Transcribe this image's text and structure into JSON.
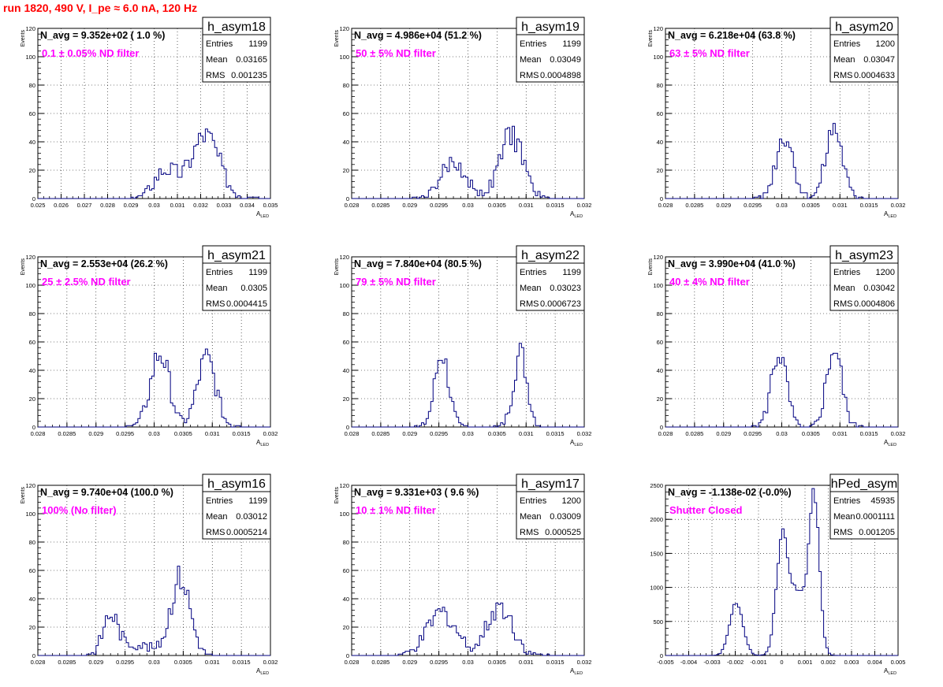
{
  "page_title": "run 1820,   490 V, I_pe ≈ 6.0 nA, 120 Hz",
  "colors": {
    "title": "#ff0000",
    "annotation": "#ff00ff",
    "histogram": "#000080",
    "grid": "#000000"
  },
  "chart_data": [
    {
      "type": "histogram",
      "name": "h_asym18",
      "stats": {
        "entries_label": "Entries",
        "entries": "1199",
        "mean_label": "Mean",
        "mean": "0.03165",
        "rms_label": "RMS",
        "rms": "0.001235"
      },
      "navg": "N_avg = 9.352e+02 ( 1.0 %)",
      "note": "0.1 ± 0.05% ND filter",
      "xlabel": "A",
      "xlabel_sub": "LED",
      "ylabel": "Events",
      "xlim": [
        0.025,
        0.035
      ],
      "ylim": [
        0,
        120
      ],
      "xticks": [
        "0.025",
        "0.026",
        "0.027",
        "0.028",
        "0.029",
        "0.03",
        "0.031",
        "0.032",
        "0.033",
        "0.034",
        "0.035"
      ],
      "yticks": [
        "0",
        "20",
        "40",
        "60",
        "80",
        "100",
        "120"
      ],
      "peaks": [
        [
          0.0305,
          0.0005,
          20,
          1
        ],
        [
          0.0322,
          0.0006,
          45,
          2
        ]
      ],
      "grid": true
    },
    {
      "type": "histogram",
      "name": "h_asym19",
      "stats": {
        "entries_label": "Entries",
        "entries": "1199",
        "mean_label": "Mean",
        "mean": "0.03049",
        "rms_label": "RMS",
        "rms": "0.0004898"
      },
      "navg": "N_avg = 4.986e+04 (51.2 %)",
      "note": "50 ± 5% ND filter",
      "xlabel": "A",
      "xlabel_sub": "LED",
      "ylabel": "Events",
      "xlim": [
        0.028,
        0.032
      ],
      "ylim": [
        0,
        120
      ],
      "xticks": [
        "0.028",
        "0.0285",
        "0.029",
        "0.0295",
        "0.03",
        "0.0305",
        "0.031",
        "0.0315",
        "0.032"
      ],
      "yticks": [
        "0",
        "20",
        "40",
        "60",
        "80",
        "100",
        "120"
      ],
      "peaks": [
        [
          0.02975,
          0.00022,
          25,
          3
        ],
        [
          0.03075,
          0.0002,
          45,
          4
        ]
      ],
      "grid": true
    },
    {
      "type": "histogram",
      "name": "h_asym20",
      "stats": {
        "entries_label": "Entries",
        "entries": "1200",
        "mean_label": "Mean",
        "mean": "0.03047",
        "rms_label": "RMS",
        "rms": "0.0004633"
      },
      "navg": "N_avg = 6.218e+04 (63.8 %)",
      "note": "63 ± 5% ND filter",
      "xlabel": "A",
      "xlabel_sub": "LED",
      "ylabel": "Events",
      "xlim": [
        0.028,
        0.032
      ],
      "ylim": [
        0,
        120
      ],
      "xticks": [
        "0.028",
        "0.0285",
        "0.029",
        "0.0295",
        "0.03",
        "0.0305",
        "0.031",
        "0.0315",
        "0.032"
      ],
      "yticks": [
        "0",
        "20",
        "40",
        "60",
        "80",
        "100",
        "120"
      ],
      "peaks": [
        [
          0.03005,
          0.00015,
          45,
          5
        ],
        [
          0.0309,
          0.00014,
          50,
          6
        ]
      ],
      "grid": true
    },
    {
      "type": "histogram",
      "name": "h_asym21",
      "stats": {
        "entries_label": "Entries",
        "entries": "1199",
        "mean_label": "Mean",
        "mean": "0.0305",
        "rms_label": "RMS",
        "rms": "0.0004415"
      },
      "navg": "N_avg = 2.553e+04 (26.2 %)",
      "note": "25 ± 2.5% ND filter",
      "xlabel": "A",
      "xlabel_sub": "LED",
      "ylabel": "Events",
      "xlim": [
        0.028,
        0.032
      ],
      "ylim": [
        0,
        120
      ],
      "xticks": [
        "0.028",
        "0.0285",
        "0.029",
        "0.0295",
        "0.03",
        "0.0305",
        "0.031",
        "0.0315",
        "0.032"
      ],
      "yticks": [
        "0",
        "20",
        "40",
        "60",
        "80",
        "100",
        "120"
      ],
      "peaks": [
        [
          0.0301,
          0.00016,
          52,
          7
        ],
        [
          0.0309,
          0.00016,
          48,
          8
        ]
      ],
      "grid": true
    },
    {
      "type": "histogram",
      "name": "h_asym22",
      "stats": {
        "entries_label": "Entries",
        "entries": "1199",
        "mean_label": "Mean",
        "mean": "0.03023",
        "rms_label": "RMS",
        "rms": "0.0006723"
      },
      "navg": "N_avg = 7.840e+04 (80.5 %)",
      "note": "79 ± 5% ND filter",
      "xlabel": "A",
      "xlabel_sub": "LED",
      "ylabel": "Events",
      "xlim": [
        0.028,
        0.032
      ],
      "ylim": [
        0,
        120
      ],
      "xticks": [
        "0.028",
        "0.0285",
        "0.029",
        "0.0295",
        "0.03",
        "0.0305",
        "0.031",
        "0.0315",
        "0.032"
      ],
      "yticks": [
        "0",
        "20",
        "40",
        "60",
        "80",
        "100",
        "120"
      ],
      "peaks": [
        [
          0.02955,
          0.00012,
          52,
          9
        ],
        [
          0.0309,
          0.00012,
          52,
          10
        ]
      ],
      "grid": true
    },
    {
      "type": "histogram",
      "name": "h_asym23",
      "stats": {
        "entries_label": "Entries",
        "entries": "1200",
        "mean_label": "Mean",
        "mean": "0.03042",
        "rms_label": "RMS",
        "rms": "0.0004806"
      },
      "navg": "N_avg = 3.990e+04 (41.0 %)",
      "note": "40 ± 4% ND filter",
      "xlabel": "A",
      "xlabel_sub": "LED",
      "ylabel": "Events",
      "xlim": [
        0.028,
        0.032
      ],
      "ylim": [
        0,
        120
      ],
      "xticks": [
        "0.028",
        "0.0285",
        "0.029",
        "0.0295",
        "0.03",
        "0.0305",
        "0.031",
        "0.0315",
        "0.032"
      ],
      "yticks": [
        "0",
        "20",
        "40",
        "60",
        "80",
        "100",
        "120"
      ],
      "peaks": [
        [
          0.02995,
          0.00013,
          52,
          11
        ],
        [
          0.0309,
          0.00013,
          55,
          12
        ]
      ],
      "grid": true
    },
    {
      "type": "histogram",
      "name": "h_asym16",
      "stats": {
        "entries_label": "Entries",
        "entries": "1199",
        "mean_label": "Mean",
        "mean": "0.03012",
        "rms_label": "RMS",
        "rms": "0.0005214"
      },
      "navg": "N_avg = 9.740e+04 (100.0 %)",
      "note": "100% (No filter)",
      "xlabel": "A",
      "xlabel_sub": "LED",
      "ylabel": "Events",
      "xlim": [
        0.028,
        0.032
      ],
      "ylim": [
        0,
        120
      ],
      "xticks": [
        "0.028",
        "0.0285",
        "0.029",
        "0.0295",
        "0.03",
        "0.0305",
        "0.031",
        "0.0315",
        "0.032"
      ],
      "yticks": [
        "0",
        "20",
        "40",
        "60",
        "80",
        "100",
        "120"
      ],
      "peaks": [
        [
          0.02925,
          0.00013,
          28,
          13
        ],
        [
          0.03045,
          0.00017,
          55,
          14
        ],
        [
          0.0297,
          0.00025,
          8,
          15
        ]
      ],
      "grid": true
    },
    {
      "type": "histogram",
      "name": "h_asym17",
      "stats": {
        "entries_label": "Entries",
        "entries": "1200",
        "mean_label": "Mean",
        "mean": "0.03009",
        "rms_label": "RMS",
        "rms": "0.000525"
      },
      "navg": "N_avg = 9.331e+03 ( 9.6 %)",
      "note": "10 ± 1% ND filter",
      "xlabel": "A",
      "xlabel_sub": "LED",
      "ylabel": "Events",
      "xlim": [
        0.028,
        0.032
      ],
      "ylim": [
        0,
        120
      ],
      "xticks": [
        "0.028",
        "0.0285",
        "0.029",
        "0.0295",
        "0.03",
        "0.0305",
        "0.031",
        "0.0315",
        "0.032"
      ],
      "yticks": [
        "0",
        "20",
        "40",
        "60",
        "80",
        "100",
        "120"
      ],
      "peaks": [
        [
          0.02955,
          0.00025,
          30,
          16
        ],
        [
          0.03055,
          0.00022,
          35,
          17
        ]
      ],
      "grid": true
    },
    {
      "type": "histogram",
      "name": "hPed_asym",
      "stats": {
        "entries_label": "Entries",
        "entries": "45935",
        "mean_label": "Mean",
        "mean": "0.0001111",
        "rms_label": "RMS",
        "rms": "0.001205"
      },
      "navg": "N_avg = -1.138e-02 (-0.0%)",
      "note": "Shutter Closed",
      "xlabel": "A",
      "xlabel_sub": "LED",
      "ylabel": "",
      "xlim": [
        -0.005,
        0.005
      ],
      "ylim": [
        0,
        2500
      ],
      "xticks": [
        "-0.005",
        "-0.004",
        "-0.003",
        "-0.002",
        "-0.001",
        "0",
        "0.001",
        "0.002",
        "0.003",
        "0.004",
        "0.005"
      ],
      "yticks": [
        "0",
        "500",
        "1000",
        "1500",
        "2000",
        "2500"
      ],
      "peaks": [
        [
          -0.00195,
          0.00028,
          780,
          18
        ],
        [
          1e-05,
          0.00025,
          1600,
          19
        ],
        [
          0.0014,
          0.00022,
          2200,
          20
        ],
        [
          0.0007,
          0.0004,
          900,
          21
        ]
      ],
      "grid": true
    }
  ]
}
